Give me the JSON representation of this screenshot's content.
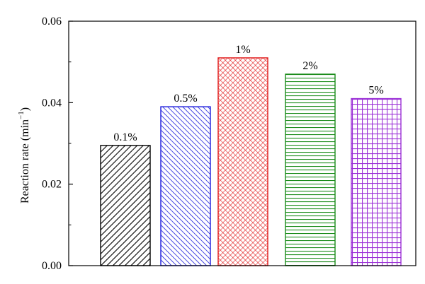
{
  "chart_data": {
    "type": "bar",
    "categories": [
      "0.1%",
      "0.5%",
      "1%",
      "2%",
      "5%"
    ],
    "values": [
      0.0295,
      0.039,
      0.051,
      0.047,
      0.041
    ],
    "bar_labels": [
      "0.1%",
      "0.5%",
      "1%",
      "2%",
      "5%"
    ],
    "ylabel": "Reaction rate (min",
    "ylabel_sup": "−1",
    "ylabel_close": ")",
    "xlabel": "",
    "title": "",
    "ylim": [
      0,
      0.06
    ],
    "yticks": [
      0.0,
      0.02,
      0.04,
      0.06
    ],
    "ytick_labels": [
      "0.00",
      "0.02",
      "0.04",
      "0.06"
    ],
    "grid": false,
    "legend": "none",
    "bar_styles": [
      {
        "color": "#000000",
        "pattern": "diagonal-forward"
      },
      {
        "color": "#1a1adb",
        "pattern": "diagonal-backward"
      },
      {
        "color": "#e01818",
        "pattern": "crosshatch-diagonal"
      },
      {
        "color": "#1a8c1a",
        "pattern": "horizontal-lines"
      },
      {
        "color": "#9b2fd6",
        "pattern": "grid"
      }
    ]
  }
}
